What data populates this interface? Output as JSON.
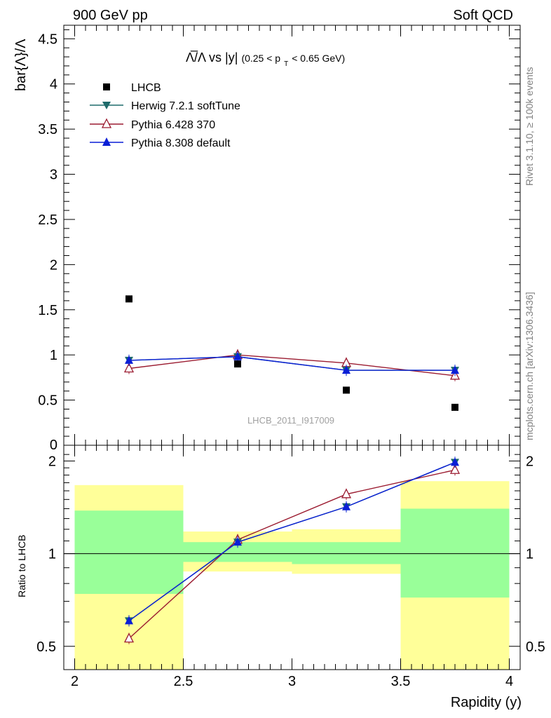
{
  "header": {
    "left": "900 GeV pp",
    "right": "Soft QCD"
  },
  "side_labels": {
    "rivet": "Rivet 3.1.10, ≥ 100k events",
    "mcplots": "mcplots.cern.ch [arXiv:1306.3436]"
  },
  "watermark": "LHCB_2011_I917009",
  "title": {
    "main": "Λ̅/Λ vs |y|",
    "cut_open": "(0.25 < p",
    "cut_sub": "T",
    "cut_close": " < 0.65 GeV)"
  },
  "colors": {
    "data": "#000000",
    "herwig": "#1f6b6b",
    "pythia6": "#9b1b30",
    "pythia8": "#0a1fd6",
    "band_inner": "#99ff99",
    "band_outer": "#ffff99"
  },
  "chart_data": [
    {
      "type": "scatter",
      "panel": "main",
      "ylabel": "bar{Λ}/Λ",
      "xlim": [
        1.95,
        4.05
      ],
      "ylim": [
        0,
        4.65
      ],
      "yticks": [
        0.5,
        1,
        1.5,
        2,
        2.5,
        3,
        3.5,
        4,
        4.5
      ],
      "ytick_labels": [
        "0.5",
        "1",
        "1.5",
        "2",
        "2.5",
        "3",
        "3.5",
        "4",
        "4.5"
      ],
      "ytick_partial": "0",
      "legend_position": "top-left",
      "series": [
        {
          "name": "LHCB",
          "marker": "square",
          "x": [
            2.25,
            2.75,
            3.25,
            3.75
          ],
          "y": [
            1.62,
            0.9,
            0.61,
            0.42
          ]
        },
        {
          "name": "Herwig 7.2.1 softTune",
          "marker": "triangle-down",
          "x": [
            2.25,
            2.75,
            3.25,
            3.75
          ],
          "y": [
            0.94,
            0.98,
            0.83,
            0.83
          ]
        },
        {
          "name": "Pythia 6.428 370",
          "marker": "triangle-open",
          "x": [
            2.25,
            2.75,
            3.25,
            3.75
          ],
          "y": [
            0.85,
            1.0,
            0.91,
            0.77
          ]
        },
        {
          "name": "Pythia 8.308 default",
          "marker": "triangle-up",
          "x": [
            2.25,
            2.75,
            3.25,
            3.75
          ],
          "y": [
            0.94,
            0.98,
            0.83,
            0.83
          ]
        }
      ]
    },
    {
      "type": "line",
      "panel": "ratio",
      "xlabel": "Rapidity (y)",
      "ylabel": "Ratio to LHCB",
      "xlim": [
        1.95,
        4.05
      ],
      "ylim": [
        0.42,
        2.25
      ],
      "xticks": [
        2,
        2.5,
        3,
        3.5,
        4
      ],
      "xtick_labels": [
        "2",
        "2.5",
        "3",
        "3.5",
        "4"
      ],
      "yticks": [
        0.5,
        1,
        2
      ],
      "ytick_labels": [
        "0.5",
        "1",
        "2"
      ],
      "bands": [
        {
          "x0": 2.0,
          "x1": 2.5,
          "inner": [
            0.74,
            1.38
          ],
          "outer": [
            0.42,
            1.67
          ]
        },
        {
          "x0": 2.5,
          "x1": 3.0,
          "inner": [
            0.94,
            1.09
          ],
          "outer": [
            0.875,
            1.18
          ]
        },
        {
          "x0": 3.0,
          "x1": 3.5,
          "inner": [
            0.925,
            1.09
          ],
          "outer": [
            0.86,
            1.2
          ]
        },
        {
          "x0": 3.5,
          "x1": 4.0,
          "inner": [
            0.72,
            1.4
          ],
          "outer": [
            0.42,
            1.72
          ]
        }
      ],
      "series": [
        {
          "name": "Herwig 7.2.1 softTune",
          "x": [
            2.25,
            2.75,
            3.25,
            3.75
          ],
          "y": [
            0.605,
            1.09,
            1.42,
            1.98
          ]
        },
        {
          "name": "Pythia 6.428 370",
          "x": [
            2.25,
            2.75,
            3.25,
            3.75
          ],
          "y": [
            0.53,
            1.11,
            1.56,
            1.87
          ]
        },
        {
          "name": "Pythia 8.308 default",
          "x": [
            2.25,
            2.75,
            3.25,
            3.75
          ],
          "y": [
            0.605,
            1.09,
            1.42,
            1.98
          ]
        }
      ]
    }
  ]
}
